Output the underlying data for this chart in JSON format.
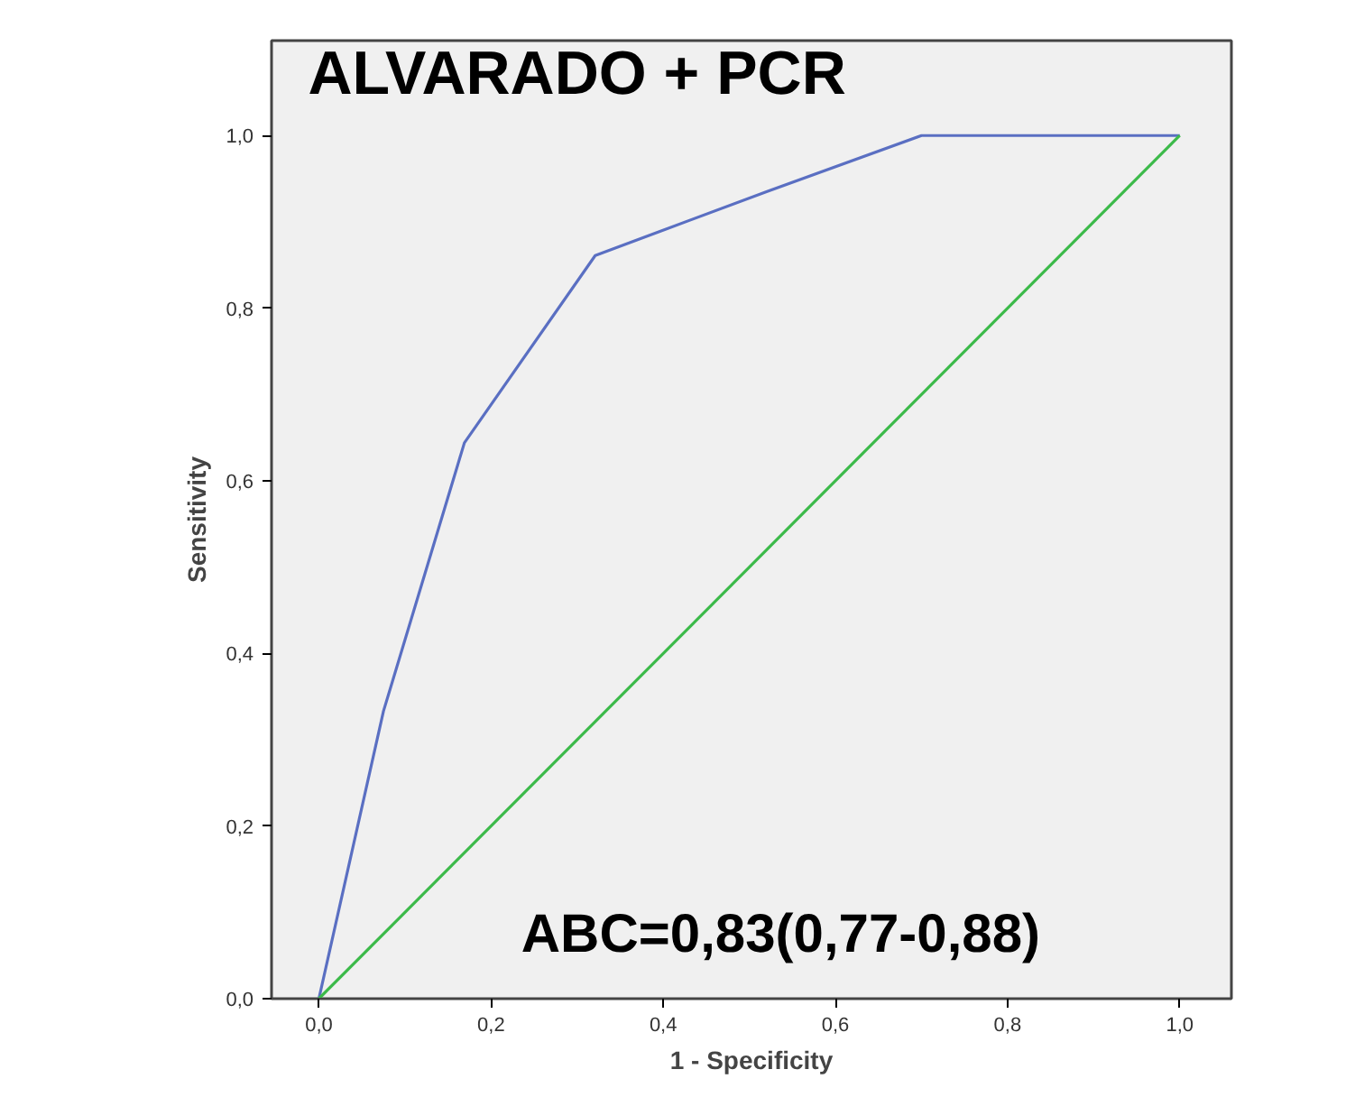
{
  "chart_data": {
    "type": "line",
    "title": "ALVARADO + PCR",
    "xlabel": "1 - Specificity",
    "ylabel": "Sensitivity",
    "annotations": [
      "ABC=0,83(0,77-0,88)"
    ],
    "xlim": [
      -0.055,
      1.06
    ],
    "ylim": [
      0,
      1.11
    ],
    "xticks": [
      {
        "value": 0,
        "label": "0,0"
      },
      {
        "value": 0.2,
        "label": "0,2"
      },
      {
        "value": 0.4,
        "label": "0,4"
      },
      {
        "value": 0.6,
        "label": "0,6"
      },
      {
        "value": 0.8,
        "label": "0,8"
      },
      {
        "value": 1,
        "label": "1,0"
      }
    ],
    "yticks": [
      {
        "value": 0,
        "label": "0,0"
      },
      {
        "value": 0.2,
        "label": "0,2"
      },
      {
        "value": 0.4,
        "label": "0,4"
      },
      {
        "value": 0.6,
        "label": "0,6"
      },
      {
        "value": 0.8,
        "label": "0,8"
      },
      {
        "value": 1,
        "label": "1,0"
      }
    ],
    "marker": "none",
    "line_style": "solid",
    "series": [
      {
        "color": "#5a6fc2",
        "x": [
          0,
          0.075,
          0.169,
          0.321,
          0.52,
          0.7,
          1.0
        ],
        "values": [
          0,
          0.333,
          0.644,
          0.861,
          0.935,
          1.0,
          1.0
        ]
      },
      {
        "color": "#3cba4a",
        "x": [
          0,
          1
        ],
        "values": [
          0,
          1
        ]
      }
    ]
  }
}
